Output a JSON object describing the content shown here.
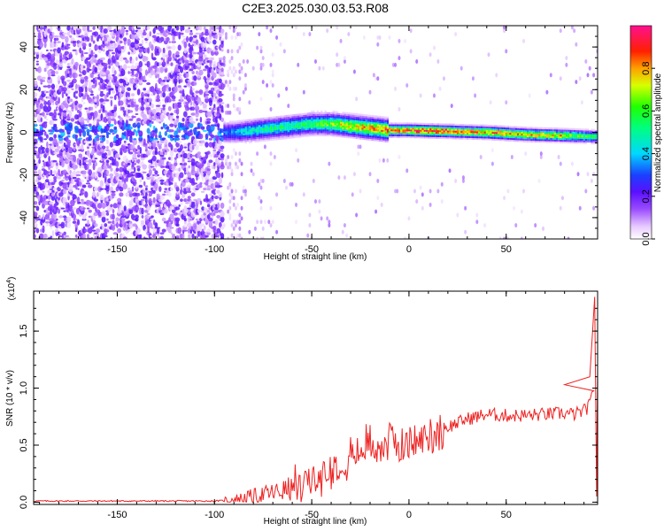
{
  "figure_title": "C2E3.2025.030.03.53.R08",
  "chart_data": [
    {
      "type": "heatmap",
      "xlabel": "Height of straight line (km)",
      "ylabel": "Frequency (Hz)",
      "xlim": [
        -193,
        97
      ],
      "ylim": [
        -50,
        50
      ],
      "xticks": [
        -150,
        -100,
        -50,
        0,
        50
      ],
      "xtick_labels": [
        "-150",
        "-100",
        "-50",
        "0",
        "50"
      ],
      "yticks": [
        -40,
        -20,
        0,
        20,
        40
      ],
      "ytick_labels": [
        "-40",
        "-20",
        "0",
        "20",
        "40"
      ],
      "colorbar": {
        "label": "Normalized spectral amplitude",
        "range": [
          0,
          1
        ],
        "ticks": [
          0.0,
          0.2,
          0.4,
          0.6,
          0.8
        ],
        "tick_labels": [
          "0.0",
          "0.2",
          "0.4",
          "0.6",
          "0.8"
        ],
        "colormap": "white-purple-blue-cyan-green-yellow-orange-red-magenta"
      },
      "signal_trace": {
        "x": [
          -100,
          -90,
          -80,
          -70,
          -60,
          -50,
          -40,
          -30,
          -20,
          -10,
          0,
          20,
          40,
          60,
          80,
          95
        ],
        "frequency": [
          0,
          0,
          1,
          2,
          3,
          4,
          4,
          3,
          2,
          1,
          1,
          0.5,
          0,
          -1,
          -1.5,
          -2
        ],
        "amplitude": [
          0.3,
          0.4,
          0.5,
          0.55,
          0.55,
          0.6,
          0.7,
          0.8,
          0.85,
          0.9,
          0.95,
          0.95,
          0.9,
          0.85,
          0.8,
          0.6
        ]
      },
      "grid": false
    },
    {
      "type": "line",
      "xlabel": "Height of straight line (km)",
      "ylabel": "SNR (10 * v/v)",
      "y_multiplier": "(x10^4)",
      "xlim": [
        -193,
        97
      ],
      "ylim": [
        -0.02,
        1.85
      ],
      "xticks": [
        -150,
        -100,
        -50,
        0,
        50
      ],
      "xtick_labels": [
        "-150",
        "-100",
        "-50",
        "0",
        "50"
      ],
      "yticks": [
        0.0,
        0.5,
        1.0,
        1.5
      ],
      "ytick_labels": [
        "0.0",
        "0.5",
        "1.0",
        "1.5"
      ],
      "series": [
        {
          "color": "#ee2222",
          "x": [
            -193,
            -180,
            -160,
            -140,
            -120,
            -100,
            -90,
            -80,
            -70,
            -60,
            -55,
            -50,
            -45,
            -40,
            -35,
            -30,
            -25,
            -20,
            -15,
            -10,
            -5,
            0,
            10,
            20,
            30,
            40,
            50,
            60,
            70,
            80,
            85,
            90,
            93,
            95,
            96,
            97
          ],
          "y": [
            0.01,
            0.01,
            0.01,
            0.01,
            0.01,
            0.01,
            0.02,
            0.05,
            0.08,
            0.12,
            0.15,
            0.18,
            0.22,
            0.3,
            0.35,
            0.4,
            0.45,
            0.52,
            0.48,
            0.55,
            0.5,
            0.5,
            0.58,
            0.66,
            0.73,
            0.77,
            0.76,
            0.76,
            0.77,
            0.78,
            0.77,
            0.8,
            0.85,
            1.0,
            1.5,
            1.2
          ],
          "spikes": [
            {
              "x": 80,
              "y": 1.03
            },
            {
              "x": 93,
              "y": 1.1
            },
            {
              "x": 95.5,
              "y": 1.8
            },
            {
              "x": 96.5,
              "y": 0.05
            }
          ]
        }
      ],
      "grid": false
    }
  ]
}
